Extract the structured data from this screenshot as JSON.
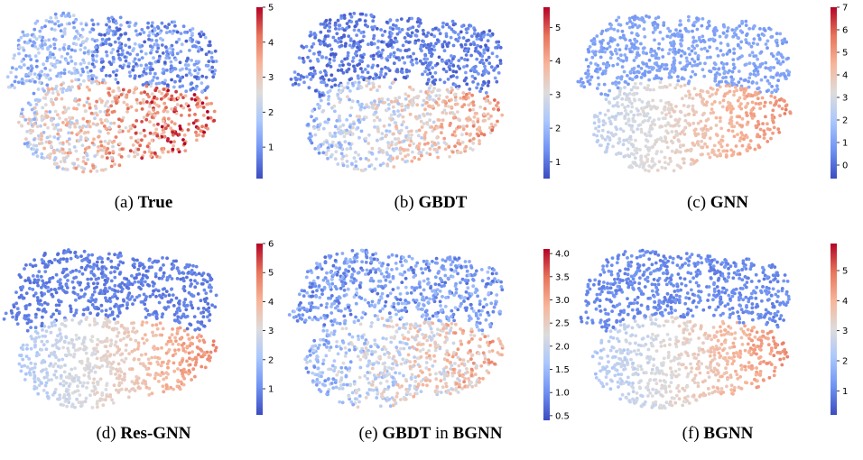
{
  "colormap": [
    "#3b4cc0",
    "#6f92f3",
    "#aac7fd",
    "#dddcdc",
    "#f7b599",
    "#e7745b",
    "#b40426"
  ],
  "chart_data": [
    {
      "type": "scatter",
      "caption_prefix": "(a)",
      "caption_bold": "True",
      "caption_suffix": "",
      "caption_bold2": "",
      "colorbar": {
        "vmin": 0.1,
        "vmax": 5.0,
        "ticks": [
          "1",
          "2",
          "3",
          "4",
          "5"
        ],
        "tick_values": [
          1,
          2,
          3,
          4,
          5
        ]
      },
      "grid": false,
      "axes_visible": false
    },
    {
      "type": "scatter",
      "caption_prefix": "(b)",
      "caption_bold": "GBDT",
      "caption_suffix": "",
      "caption_bold2": "",
      "colorbar": {
        "vmin": 0.5,
        "vmax": 5.6,
        "ticks": [
          "1",
          "2",
          "3",
          "4",
          "5"
        ],
        "tick_values": [
          1,
          2,
          3,
          4,
          5
        ]
      },
      "grid": false,
      "axes_visible": false
    },
    {
      "type": "scatter",
      "caption_prefix": "(c)",
      "caption_bold": "GNN",
      "caption_suffix": "",
      "caption_bold2": "",
      "colorbar": {
        "vmin": -0.6,
        "vmax": 7.0,
        "ticks": [
          "0",
          "1",
          "2",
          "3",
          "4",
          "5",
          "6",
          "7"
        ],
        "tick_values": [
          0,
          1,
          2,
          3,
          4,
          5,
          6,
          7
        ]
      },
      "grid": false,
      "axes_visible": false
    },
    {
      "type": "scatter",
      "caption_prefix": "(d)",
      "caption_bold": "Res-GNN",
      "caption_suffix": "",
      "caption_bold2": "",
      "colorbar": {
        "vmin": 0.1,
        "vmax": 6.0,
        "ticks": [
          "1",
          "2",
          "3",
          "4",
          "5",
          "6"
        ],
        "tick_values": [
          1,
          2,
          3,
          4,
          5,
          6
        ]
      },
      "grid": false,
      "axes_visible": false
    },
    {
      "type": "scatter",
      "caption_prefix": "(e)",
      "caption_bold": "GBDT",
      "caption_suffix": "in",
      "caption_bold2": "BGNN",
      "colorbar": {
        "vmin": 0.4,
        "vmax": 4.1,
        "ticks": [
          "0.5",
          "1.0",
          "1.5",
          "2.0",
          "2.5",
          "3.0",
          "3.5",
          "4.0"
        ],
        "tick_values": [
          0.5,
          1.0,
          1.5,
          2.0,
          2.5,
          3.0,
          3.5,
          4.0
        ]
      },
      "grid": false,
      "axes_visible": false
    },
    {
      "type": "scatter",
      "caption_prefix": "(f)",
      "caption_bold": "BGNN",
      "caption_suffix": "",
      "caption_bold2": "",
      "colorbar": {
        "vmin": 0.2,
        "vmax": 5.9,
        "ticks": [
          "1",
          "2",
          "3",
          "4",
          "5"
        ],
        "tick_values": [
          1,
          2,
          3,
          4,
          5
        ]
      },
      "grid": false,
      "axes_visible": false
    }
  ]
}
